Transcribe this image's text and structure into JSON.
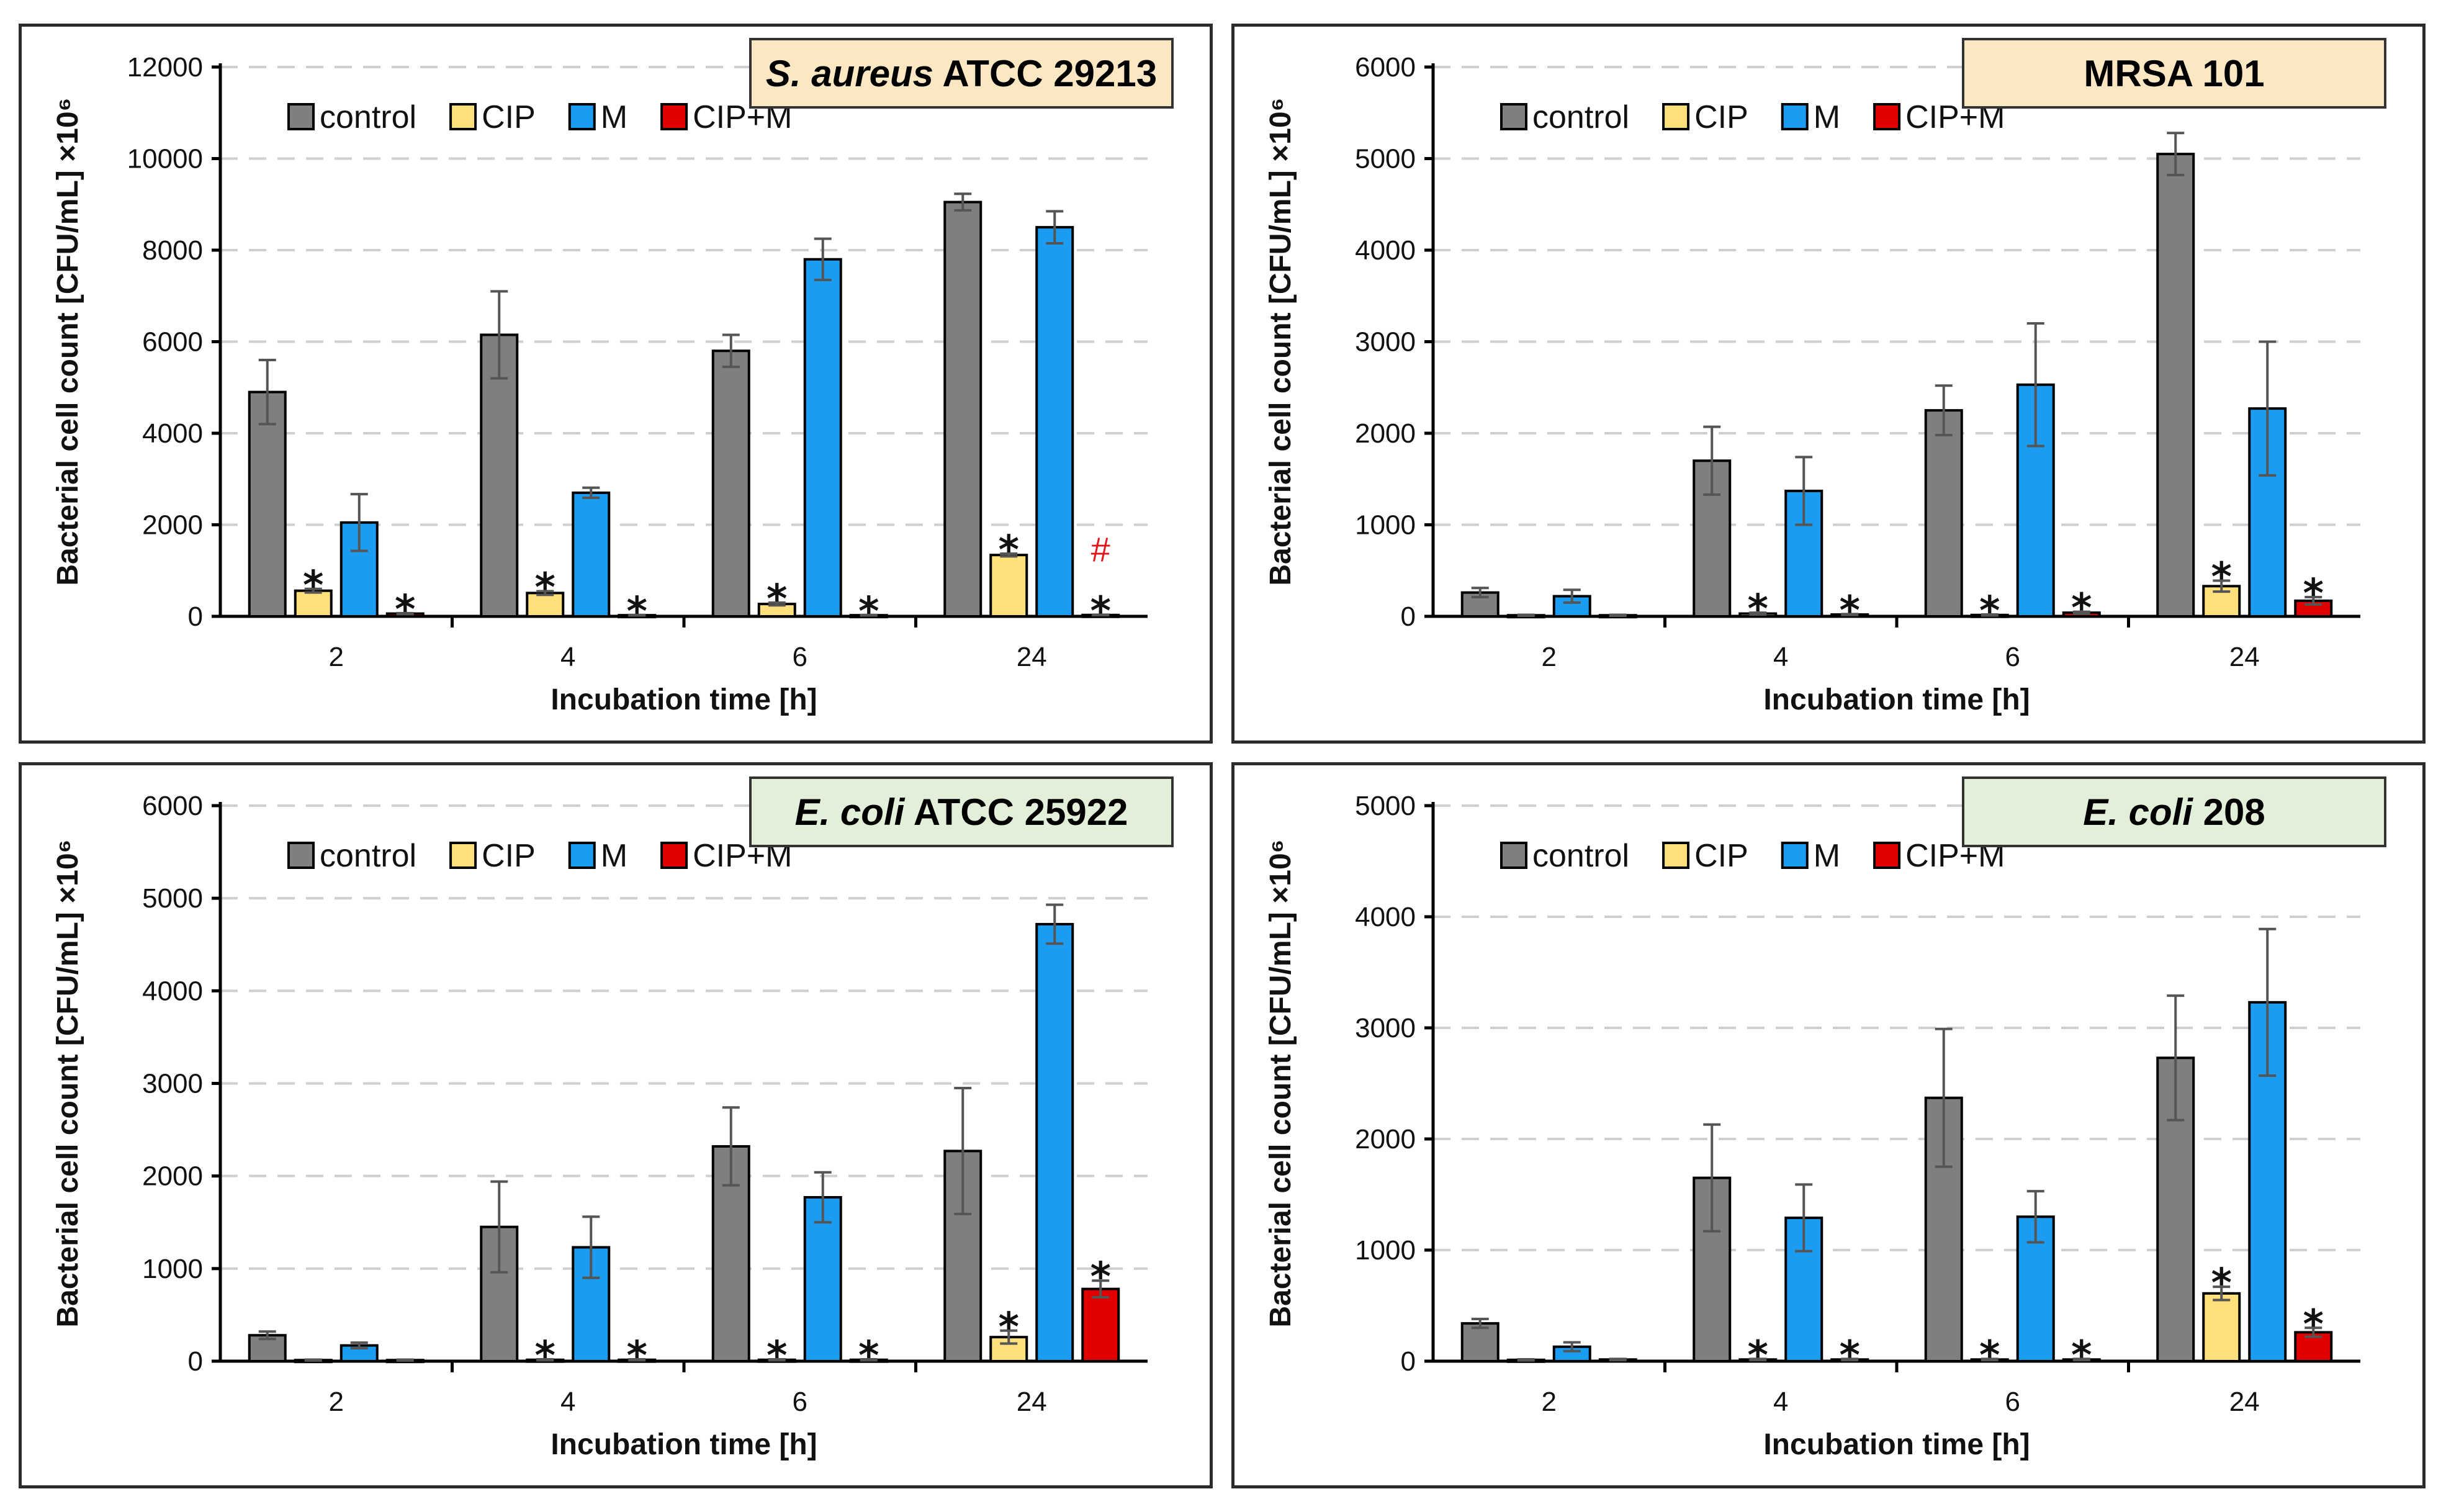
{
  "chart_data": [
    {
      "type": "bar",
      "title_italic": "S. aureus",
      "title_rest": " ATCC 29213",
      "title_bg": "#fbe8c3",
      "ylabel": "Bacterial cell count [CFU/mL] ×10⁶",
      "xlabel": "Incubation time [h]",
      "ylim": [
        0,
        12000
      ],
      "yticks": [
        0,
        2000,
        4000,
        6000,
        8000,
        10000,
        12000
      ],
      "categories": [
        "2",
        "4",
        "6",
        "24"
      ],
      "series": [
        {
          "name": "control",
          "color": "#7f7f7f",
          "values": [
            4900,
            6150,
            5800,
            9050
          ],
          "errors": [
            700,
            950,
            350,
            180
          ]
        },
        {
          "name": "CIP",
          "color": "#ffe07a",
          "values": [
            560,
            510,
            270,
            1340
          ],
          "errors": [
            40,
            40,
            30,
            30
          ]
        },
        {
          "name": "M",
          "color": "#1a9cf0",
          "values": [
            2050,
            2700,
            7800,
            8500
          ],
          "errors": [
            620,
            110,
            450,
            350
          ]
        },
        {
          "name": "CIP+M",
          "color": "#e00000",
          "values": [
            60,
            25,
            25,
            30
          ],
          "errors": [
            10,
            5,
            5,
            5
          ]
        }
      ],
      "annotations": [
        {
          "category": "2",
          "series": "CIP",
          "text": "*"
        },
        {
          "category": "2",
          "series": "CIP+M",
          "text": "*"
        },
        {
          "category": "4",
          "series": "CIP",
          "text": "*"
        },
        {
          "category": "4",
          "series": "CIP+M",
          "text": "*"
        },
        {
          "category": "6",
          "series": "CIP",
          "text": "*"
        },
        {
          "category": "6",
          "series": "CIP+M",
          "text": "*"
        },
        {
          "category": "24",
          "series": "CIP",
          "text": "*"
        },
        {
          "category": "24",
          "series": "CIP+M",
          "text": "*"
        },
        {
          "category": "24",
          "series": "CIP+M",
          "text": "#",
          "color": "#e4141b"
        }
      ]
    },
    {
      "type": "bar",
      "title_italic": "",
      "title_rest": "MRSA 101",
      "title_bg": "#fbe8c3",
      "ylabel": "Bacterial cell count [CFU/mL] ×10⁶",
      "xlabel": "Incubation time [h]",
      "ylim": [
        0,
        6000
      ],
      "yticks": [
        0,
        1000,
        2000,
        3000,
        4000,
        5000,
        6000
      ],
      "categories": [
        "2",
        "4",
        "6",
        "24"
      ],
      "series": [
        {
          "name": "control",
          "color": "#7f7f7f",
          "values": [
            260,
            1700,
            2250,
            5050
          ],
          "errors": [
            50,
            370,
            270,
            230
          ]
        },
        {
          "name": "CIP",
          "color": "#ffe07a",
          "values": [
            12,
            30,
            15,
            330
          ],
          "errors": [
            5,
            10,
            5,
            60
          ]
        },
        {
          "name": "M",
          "color": "#1a9cf0",
          "values": [
            220,
            1370,
            2530,
            2270
          ],
          "errors": [
            70,
            370,
            670,
            730
          ]
        },
        {
          "name": "CIP+M",
          "color": "#e00000",
          "values": [
            12,
            20,
            40,
            170
          ],
          "errors": [
            5,
            5,
            10,
            40
          ]
        }
      ],
      "annotations": [
        {
          "category": "4",
          "series": "CIP",
          "text": "*"
        },
        {
          "category": "4",
          "series": "CIP+M",
          "text": "*"
        },
        {
          "category": "6",
          "series": "CIP",
          "text": "*"
        },
        {
          "category": "6",
          "series": "CIP+M",
          "text": "*"
        },
        {
          "category": "24",
          "series": "CIP",
          "text": "*"
        },
        {
          "category": "24",
          "series": "CIP+M",
          "text": "*"
        }
      ]
    },
    {
      "type": "bar",
      "title_italic": "E. coli",
      "title_rest": " ATCC 25922",
      "title_bg": "#e2f0d9",
      "ylabel": "Bacterial cell count [CFU/mL] ×10⁶",
      "xlabel": "Incubation time [h]",
      "ylim": [
        0,
        6000
      ],
      "yticks": [
        0,
        1000,
        2000,
        3000,
        4000,
        5000,
        6000
      ],
      "categories": [
        "2",
        "4",
        "6",
        "24"
      ],
      "series": [
        {
          "name": "control",
          "color": "#7f7f7f",
          "values": [
            280,
            1450,
            2320,
            2270
          ],
          "errors": [
            40,
            490,
            420,
            680
          ]
        },
        {
          "name": "CIP",
          "color": "#ffe07a",
          "values": [
            12,
            15,
            15,
            260
          ],
          "errors": [
            5,
            5,
            5,
            70
          ]
        },
        {
          "name": "M",
          "color": "#1a9cf0",
          "values": [
            170,
            1230,
            1770,
            4720
          ],
          "errors": [
            30,
            330,
            270,
            210
          ]
        },
        {
          "name": "CIP+M",
          "color": "#e00000",
          "values": [
            12,
            15,
            15,
            780
          ],
          "errors": [
            5,
            5,
            5,
            90
          ]
        }
      ],
      "annotations": [
        {
          "category": "4",
          "series": "CIP",
          "text": "*"
        },
        {
          "category": "4",
          "series": "CIP+M",
          "text": "*"
        },
        {
          "category": "6",
          "series": "CIP",
          "text": "*"
        },
        {
          "category": "6",
          "series": "CIP+M",
          "text": "*"
        },
        {
          "category": "24",
          "series": "CIP",
          "text": "*"
        },
        {
          "category": "24",
          "series": "CIP+M",
          "text": "*"
        }
      ]
    },
    {
      "type": "bar",
      "title_italic": "E. coli",
      "title_rest": " 208",
      "title_bg": "#e2f0d9",
      "ylabel": "Bacterial cell count [CFU/mL] ×10⁶",
      "xlabel": "Incubation time [h]",
      "ylim": [
        0,
        5000
      ],
      "yticks": [
        0,
        1000,
        2000,
        3000,
        4000,
        5000
      ],
      "categories": [
        "2",
        "4",
        "6",
        "24"
      ],
      "series": [
        {
          "name": "control",
          "color": "#7f7f7f",
          "values": [
            340,
            1650,
            2370,
            2730
          ],
          "errors": [
            40,
            480,
            620,
            560
          ]
        },
        {
          "name": "CIP",
          "color": "#ffe07a",
          "values": [
            12,
            15,
            15,
            610
          ],
          "errors": [
            5,
            5,
            5,
            60
          ]
        },
        {
          "name": "M",
          "color": "#1a9cf0",
          "values": [
            130,
            1290,
            1300,
            3230
          ],
          "errors": [
            40,
            300,
            230,
            660
          ]
        },
        {
          "name": "CIP+M",
          "color": "#e00000",
          "values": [
            15,
            15,
            15,
            260
          ],
          "errors": [
            5,
            5,
            5,
            40
          ]
        }
      ],
      "annotations": [
        {
          "category": "4",
          "series": "CIP",
          "text": "*"
        },
        {
          "category": "4",
          "series": "CIP+M",
          "text": "*"
        },
        {
          "category": "6",
          "series": "CIP",
          "text": "*"
        },
        {
          "category": "6",
          "series": "CIP+M",
          "text": "*"
        },
        {
          "category": "24",
          "series": "CIP",
          "text": "*"
        },
        {
          "category": "24",
          "series": "CIP+M",
          "text": "*"
        }
      ]
    }
  ]
}
